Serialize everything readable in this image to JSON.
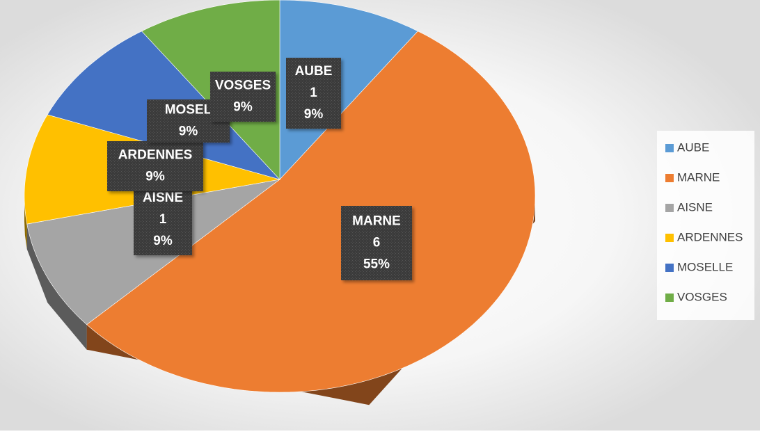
{
  "chart_data": {
    "type": "pie",
    "categories": [
      "AUBE",
      "MARNE",
      "AISNE",
      "ARDENNES",
      "MOSELLE",
      "VOSGES"
    ],
    "values": [
      1,
      6,
      1,
      1,
      1,
      1
    ],
    "colors": [
      "#5b9bd5",
      "#ed7d31",
      "#a5a5a5",
      "#ffc000",
      "#4472c4",
      "#70ad47"
    ],
    "data_labels": [
      [
        "AUBE",
        "1",
        "9%"
      ],
      [
        "MARNE",
        "6",
        "55%"
      ],
      [
        "AISNE",
        "1",
        "9%"
      ],
      [
        "ARDENNES",
        "9%"
      ],
      [
        "MOSEL",
        "9%"
      ],
      [
        "VOSGES",
        "9%"
      ]
    ],
    "legend": "right"
  }
}
